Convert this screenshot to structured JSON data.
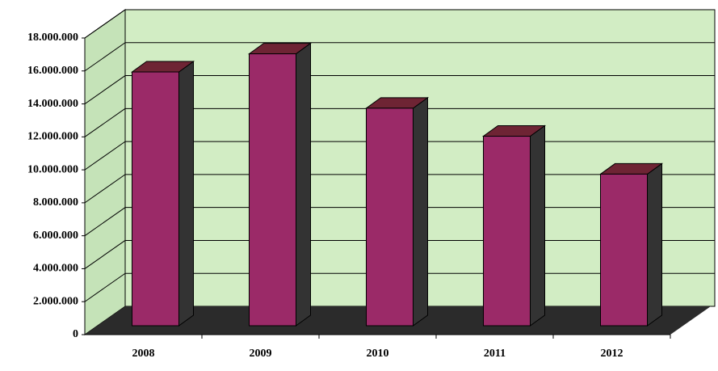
{
  "chart_data": {
    "type": "bar3d",
    "categories": [
      "2008",
      "2009",
      "2010",
      "2011",
      "2012"
    ],
    "values": [
      15400000,
      16500000,
      13200000,
      11500000,
      9200000
    ],
    "color": "#9b2a68",
    "ylim": [
      0,
      18000000
    ],
    "yticks": [
      {
        "value": 0,
        "label": "0"
      },
      {
        "value": 2000000,
        "label": "2.000.000"
      },
      {
        "value": 4000000,
        "label": "4.000.000"
      },
      {
        "value": 6000000,
        "label": "6.000.000"
      },
      {
        "value": 8000000,
        "label": "8.000.000"
      },
      {
        "value": 10000000,
        "label": "10.000.000"
      },
      {
        "value": 12000000,
        "label": "12.000.000"
      },
      {
        "value": 14000000,
        "label": "14.000.000"
      },
      {
        "value": 16000000,
        "label": "16.000.000"
      },
      {
        "value": 18000000,
        "label": "18.000.000"
      }
    ],
    "grid": true
  }
}
